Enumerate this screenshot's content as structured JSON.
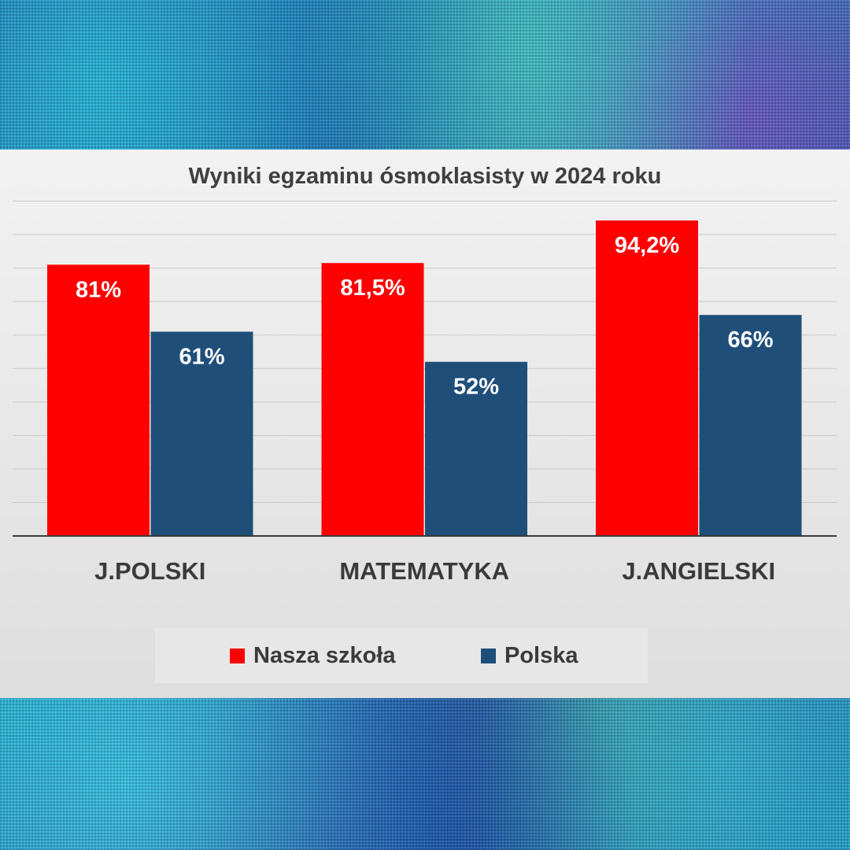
{
  "chart_data": {
    "type": "bar",
    "title": "Wyniki egzaminu ósmoklasisty w 2024 roku",
    "categories": [
      "J.POLSKI",
      "MATEMATYKA",
      "J.ANGIELSKI"
    ],
    "series": [
      {
        "name": "Nasza szkoła",
        "values": [
          81,
          81.5,
          94.2
        ],
        "labels": [
          "81%",
          "81,5%",
          "94,2%"
        ],
        "color": "#ff0000"
      },
      {
        "name": "Polska",
        "values": [
          61,
          52,
          66
        ],
        "labels": [
          "61%",
          "52%",
          "66%"
        ],
        "color": "#1f4e79"
      }
    ],
    "ylim": [
      0,
      100
    ],
    "grid": true,
    "legend": "bottom"
  }
}
